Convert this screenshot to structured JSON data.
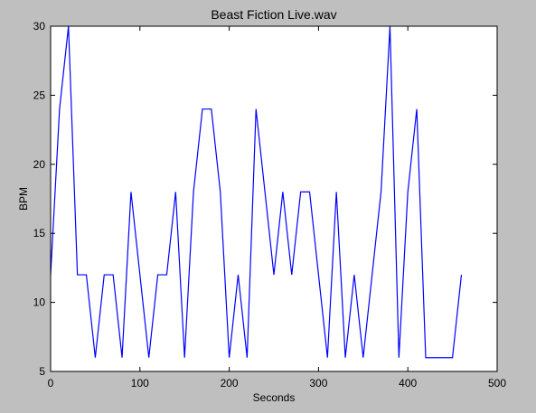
{
  "colors": {
    "figure_background": "#bfbfbf",
    "axes_background": "#ffffff",
    "line": "#0000ff",
    "axes_edge": "#000000"
  },
  "chart_data": {
    "type": "line",
    "title": "Beast Fiction Live.wav",
    "xlabel": "Seconds",
    "ylabel": "BPM",
    "xlim": [
      0,
      500
    ],
    "ylim": [
      5,
      30
    ],
    "xticks": [
      0,
      100,
      200,
      300,
      400,
      500
    ],
    "yticks": [
      5,
      10,
      15,
      20,
      25,
      30
    ],
    "grid": false,
    "legend": "none",
    "series": [
      {
        "color": "#0000ff",
        "x": [
          0,
          10,
          20,
          30,
          40,
          50,
          60,
          70,
          80,
          90,
          100,
          110,
          120,
          130,
          140,
          150,
          160,
          170,
          180,
          190,
          200,
          210,
          220,
          230,
          240,
          250,
          260,
          270,
          280,
          290,
          300,
          310,
          320,
          330,
          340,
          350,
          360,
          370,
          380,
          390,
          400,
          410,
          420,
          430,
          440,
          450,
          460
        ],
        "y": [
          12,
          24,
          30,
          12,
          12,
          6,
          12,
          12,
          6,
          18,
          12,
          6,
          12,
          12,
          18,
          6,
          18,
          24,
          24,
          18,
          6,
          12,
          6,
          24,
          18,
          12,
          18,
          12,
          18,
          18,
          12,
          6,
          18,
          6,
          12,
          6,
          12,
          18,
          30,
          6,
          18,
          24,
          6,
          6,
          6,
          6,
          12
        ]
      }
    ]
  }
}
